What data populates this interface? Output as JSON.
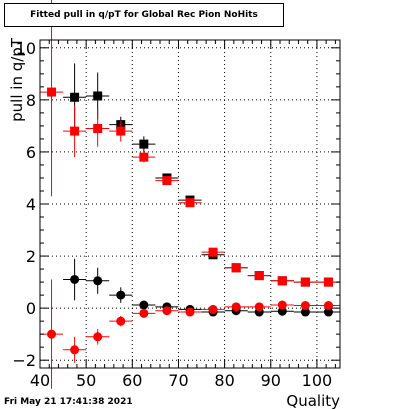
{
  "title": "Fitted pull in q/pT for Global Rec Pion NoHits",
  "footer": "Fri May 21 17:41:38 2021",
  "colors": {
    "series_black": "#000000",
    "series_red": "#ff0000",
    "grid": "#000000",
    "background": "#ffffff"
  },
  "chart_data": {
    "type": "scatter",
    "title": "Fitted pull in q/pT for Global Rec Pion NoHits",
    "xlabel": "Quality",
    "ylabel": "pull in q/pT",
    "xlim": [
      40,
      105
    ],
    "ylim": [
      -2.3,
      10.3
    ],
    "xticks": [
      40,
      50,
      60,
      70,
      80,
      90,
      100
    ],
    "yticks": [
      -2,
      0,
      2,
      4,
      6,
      8,
      10
    ],
    "grid": true,
    "series": [
      {
        "marker": "square",
        "color": "#000000",
        "points": [
          {
            "x": 47.5,
            "y": 8.1,
            "yerr": 1.3
          },
          {
            "x": 52.5,
            "y": 8.15,
            "yerr": 0.9
          },
          {
            "x": 57.5,
            "y": 7.05,
            "yerr": 0.3
          },
          {
            "x": 62.5,
            "y": 6.3,
            "yerr": 0.3
          },
          {
            "x": 67.5,
            "y": 5.0,
            "yerr": 0.1
          },
          {
            "x": 72.5,
            "y": 4.15,
            "yerr": 0.05
          },
          {
            "x": 77.5,
            "y": 2.05,
            "yerr": 0.05
          },
          {
            "x": 82.5,
            "y": 1.55,
            "yerr": 0.03
          },
          {
            "x": 87.5,
            "y": 1.25,
            "yerr": 0.03
          },
          {
            "x": 92.5,
            "y": 1.05,
            "yerr": 0.02
          },
          {
            "x": 97.5,
            "y": 1.0,
            "yerr": 0.02
          },
          {
            "x": 102.5,
            "y": 1.0,
            "yerr": 0.02
          }
        ]
      },
      {
        "marker": "square",
        "color": "#ff0000",
        "points": [
          {
            "x": 42.5,
            "y": 8.3,
            "yerr": 4.0
          },
          {
            "x": 47.5,
            "y": 6.8,
            "yerr": 1.0
          },
          {
            "x": 52.5,
            "y": 6.9,
            "yerr": 0.7
          },
          {
            "x": 57.5,
            "y": 6.8,
            "yerr": 0.4
          },
          {
            "x": 62.5,
            "y": 5.8,
            "yerr": 0.2
          },
          {
            "x": 67.5,
            "y": 4.9,
            "yerr": 0.1
          },
          {
            "x": 72.5,
            "y": 4.05,
            "yerr": 0.05
          },
          {
            "x": 77.5,
            "y": 2.15,
            "yerr": 0.05
          },
          {
            "x": 82.5,
            "y": 1.55,
            "yerr": 0.03
          },
          {
            "x": 87.5,
            "y": 1.25,
            "yerr": 0.03
          },
          {
            "x": 92.5,
            "y": 1.05,
            "yerr": 0.02
          },
          {
            "x": 97.5,
            "y": 1.0,
            "yerr": 0.02
          },
          {
            "x": 102.5,
            "y": 1.0,
            "yerr": 0.02
          }
        ]
      },
      {
        "marker": "circle",
        "color": "#000000",
        "points": [
          {
            "x": 47.5,
            "y": 1.1,
            "yerr": 0.8
          },
          {
            "x": 52.5,
            "y": 1.05,
            "yerr": 0.5
          },
          {
            "x": 57.5,
            "y": 0.5,
            "yerr": 0.3
          },
          {
            "x": 62.5,
            "y": 0.12,
            "yerr": 0.15
          },
          {
            "x": 67.5,
            "y": 0.05,
            "yerr": 0.08
          },
          {
            "x": 72.5,
            "y": -0.05,
            "yerr": 0.05
          },
          {
            "x": 77.5,
            "y": -0.15,
            "yerr": 0.04
          },
          {
            "x": 82.5,
            "y": -0.1,
            "yerr": 0.03
          },
          {
            "x": 87.5,
            "y": -0.15,
            "yerr": 0.03
          },
          {
            "x": 92.5,
            "y": -0.12,
            "yerr": 0.02
          },
          {
            "x": 97.5,
            "y": -0.15,
            "yerr": 0.02
          },
          {
            "x": 102.5,
            "y": -0.15,
            "yerr": 0.02
          }
        ]
      },
      {
        "marker": "circle",
        "color": "#ff0000",
        "points": [
          {
            "x": 42.5,
            "y": -1.0,
            "yerr": 2.1
          },
          {
            "x": 47.5,
            "y": -1.6,
            "yerr": 0.5
          },
          {
            "x": 52.5,
            "y": -1.1,
            "yerr": 0.3
          },
          {
            "x": 57.5,
            "y": -0.5,
            "yerr": 0.2
          },
          {
            "x": 62.5,
            "y": -0.2,
            "yerr": 0.1
          },
          {
            "x": 67.5,
            "y": -0.1,
            "yerr": 0.06
          },
          {
            "x": 72.5,
            "y": -0.15,
            "yerr": 0.04
          },
          {
            "x": 77.5,
            "y": -0.05,
            "yerr": 0.03
          },
          {
            "x": 82.5,
            "y": 0.05,
            "yerr": 0.03
          },
          {
            "x": 87.5,
            "y": 0.05,
            "yerr": 0.02
          },
          {
            "x": 92.5,
            "y": 0.12,
            "yerr": 0.02
          },
          {
            "x": 97.5,
            "y": 0.1,
            "yerr": 0.02
          },
          {
            "x": 102.5,
            "y": 0.1,
            "yerr": 0.02
          }
        ]
      }
    ]
  }
}
